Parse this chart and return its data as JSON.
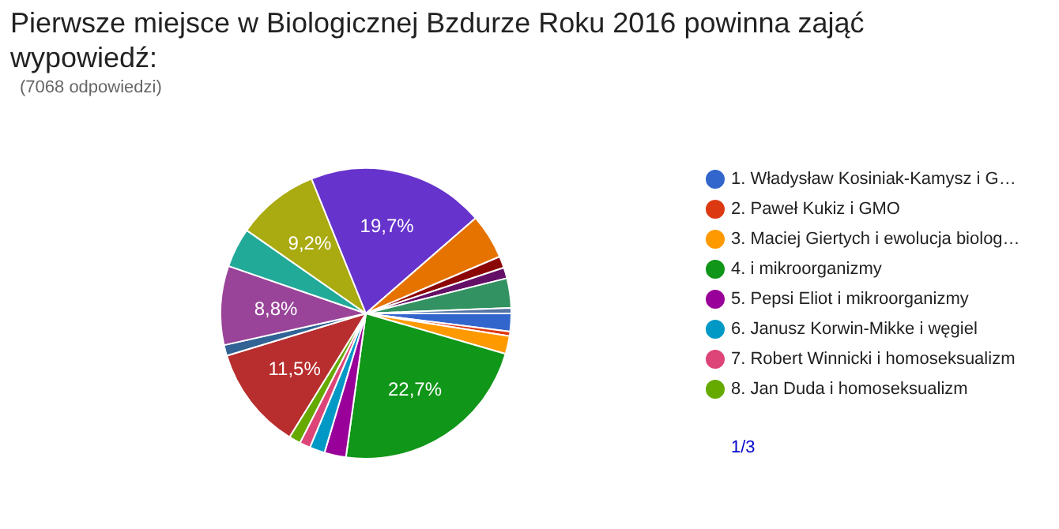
{
  "chart_data": {
    "type": "pie",
    "title": "Pierwsze miejsce w Biologicznej Bzdurze Roku 2016 powinna zająć wypowiedź:",
    "subtitle": "(7068 odpowiedzi)",
    "categories": [
      "1. Władysław Kosiniak-Kamysz i G…",
      "2. Paweł Kukiz i GMO",
      "3. Maciej Giertych i ewolucja biolog…",
      "4. i mikroorganizmy",
      "5. Pepsi Eliot i mikroorganizmy",
      "6. Janusz Korwin-Mikke i węgiel",
      "7. Robert Winnicki i homoseksualizm",
      "8. Jan Duda i homoseksualizm",
      null,
      null,
      null,
      null,
      null,
      null,
      null,
      null,
      null,
      null,
      null
    ],
    "values": [
      2,
      0.5,
      2,
      22.7,
      2.4,
      1.7,
      1.2,
      1.3,
      11.5,
      1.2,
      8.8,
      4.4,
      9.2,
      19.7,
      5,
      1.3,
      1.2,
      3.3,
      0.6
    ],
    "colors": [
      "#3366cc",
      "#dc3912",
      "#ff9900",
      "#109618",
      "#990099",
      "#0099c6",
      "#dd4477",
      "#66aa00",
      "#b82e2e",
      "#316395",
      "#994499",
      "#22aa99",
      "#aaaa11",
      "#6633cc",
      "#e67300",
      "#8b0707",
      "#651067",
      "#329262",
      "#5574a6"
    ],
    "value_labels": [
      null,
      null,
      null,
      "22,7%",
      null,
      null,
      null,
      null,
      "11,5%",
      null,
      "8,8%",
      null,
      "9,2%",
      "19,7%",
      null,
      null,
      null,
      null,
      null
    ],
    "legend": "right",
    "annotations": [
      "1/3"
    ]
  }
}
